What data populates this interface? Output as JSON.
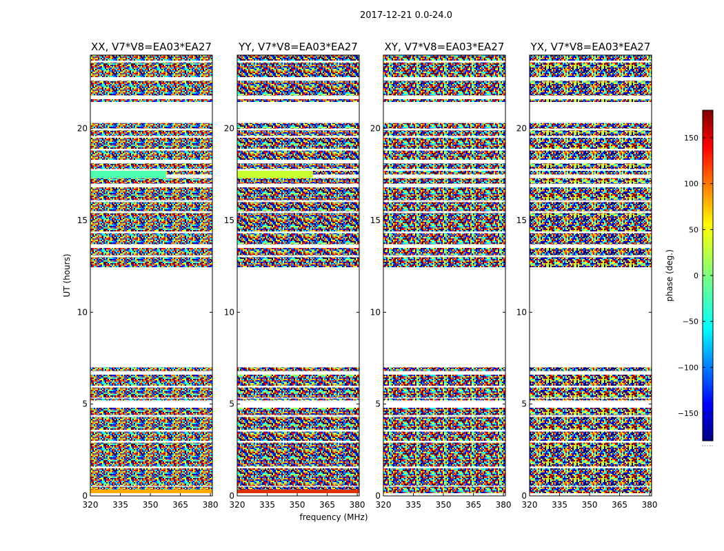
{
  "figure_title": "2017-12-21 0.0-24.0",
  "chart_data": {
    "type": "heatmap",
    "title": "2017-12-21 0.0-24.0",
    "xlabel": "frequency (MHz)",
    "ylabel": "UT (hours)",
    "xlim": [
      320,
      381
    ],
    "ylim": [
      0,
      24
    ],
    "xticks": [
      320,
      335,
      350,
      365,
      380
    ],
    "yticks": [
      0,
      5,
      10,
      15,
      20
    ],
    "panels": [
      {
        "title": "XX, V7*V8=EA03*EA27",
        "polarization": "XX"
      },
      {
        "title": "YY, V7*V8=EA03*EA27",
        "polarization": "YY"
      },
      {
        "title": "XY, V7*V8=EA03*EA27",
        "polarization": "XY"
      },
      {
        "title": "YX, V7*V8=EA03*EA27",
        "polarization": "YX"
      }
    ],
    "flagged_gaps_ut_hours": [
      [
        7.0,
        12.4
      ],
      [
        21.4,
        20.4
      ]
    ],
    "colorbar": {
      "label": "phase (deg.)",
      "range": [
        -180,
        180
      ],
      "ticks": [
        150,
        100,
        50,
        0,
        -50,
        -100,
        -150
      ],
      "tick_labels": [
        "150",
        "100",
        "50",
        "0",
        "−50",
        "−100",
        "−150"
      ],
      "colormap": "jet",
      "footer_text": "....."
    }
  },
  "colors": {
    "jet": [
      "#00007f",
      "#0000ff",
      "#007fff",
      "#00ffff",
      "#7fff7f",
      "#ffff00",
      "#ff7f00",
      "#ff0000",
      "#7f0000"
    ],
    "frame": "#000000",
    "background": "#ffffff"
  }
}
